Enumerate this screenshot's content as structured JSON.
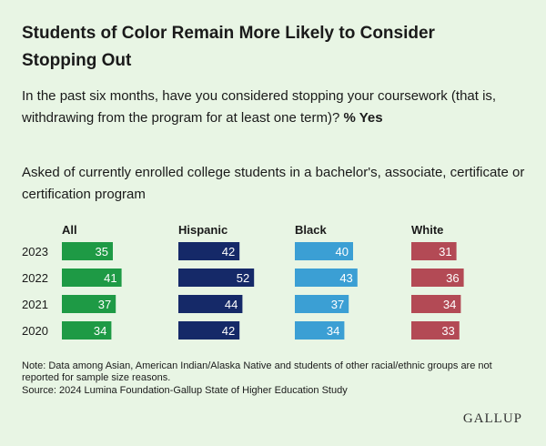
{
  "title": "Students of Color Remain More Likely to Consider Stopping Out",
  "question": "In the past six months, have you considered stopping your coursework (that is, withdrawing from the program for at least one term)?",
  "question_emphasis": "% Yes",
  "population_note": "Asked of currently enrolled college students in a bachelor's, associate, certificate or certification program",
  "footnote": "Note: Data among Asian, American Indian/Alaska Native and students of other racial/ethnic groups are not reported for sample size reasons.",
  "source": "Source: 2024 Lumina Foundation-Gallup State of Higher Education Study",
  "logo": "GALLUP",
  "chart_data": {
    "type": "bar",
    "orientation": "horizontal",
    "layout": "small-multiples",
    "categories": [
      "2023",
      "2022",
      "2021",
      "2020"
    ],
    "series": [
      {
        "name": "All",
        "color": "#1e9a45",
        "values": [
          35,
          41,
          37,
          34
        ]
      },
      {
        "name": "Hispanic",
        "color": "#152968",
        "values": [
          42,
          52,
          44,
          42
        ]
      },
      {
        "name": "Black",
        "color": "#3b9fd4",
        "values": [
          40,
          43,
          37,
          34
        ]
      },
      {
        "name": "White",
        "color": "#b34a55",
        "values": [
          31,
          36,
          34,
          33
        ]
      }
    ],
    "title": "% Yes",
    "xlim": [
      0,
      100
    ]
  }
}
